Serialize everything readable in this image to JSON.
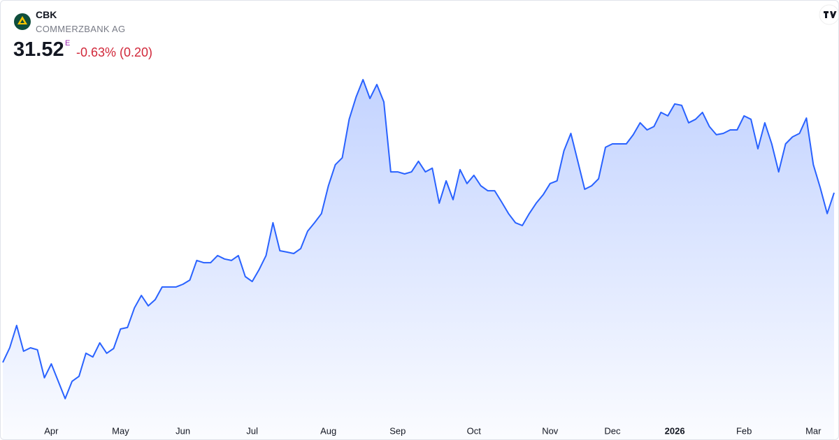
{
  "header": {
    "symbol": "CBK",
    "name": "COMMERZBANK AG",
    "price": "31.52",
    "badge": "E",
    "change": "-0.63% (0.20)"
  },
  "chart_data": {
    "type": "line",
    "categories": [
      null,
      null,
      null,
      null,
      null,
      null,
      null,
      "Apr",
      null,
      null,
      null,
      null,
      null,
      null,
      null,
      null,
      null,
      "May",
      null,
      null,
      null,
      null,
      null,
      null,
      null,
      null,
      "Jun",
      null,
      null,
      null,
      null,
      null,
      null,
      null,
      null,
      null,
      "Jul",
      null,
      null,
      null,
      null,
      null,
      null,
      null,
      null,
      null,
      null,
      "Aug",
      null,
      null,
      null,
      null,
      null,
      null,
      null,
      null,
      null,
      "Sep",
      null,
      null,
      null,
      null,
      null,
      null,
      null,
      null,
      null,
      null,
      "Oct",
      null,
      null,
      null,
      null,
      null,
      null,
      null,
      null,
      null,
      null,
      "Nov",
      null,
      null,
      null,
      null,
      null,
      null,
      null,
      null,
      "Dec",
      null,
      null,
      null,
      null,
      null,
      null,
      null,
      null,
      "2026",
      null,
      null,
      null,
      null,
      null,
      null,
      null,
      null,
      null,
      "Feb",
      null,
      null,
      null,
      null,
      null,
      null,
      null,
      null,
      null,
      "Mar",
      null,
      null,
      null
    ],
    "series": [
      {
        "color": "#2962ff",
        "values": [
          22.25,
          23.05,
          24.27,
          22.86,
          23.05,
          22.94,
          21.41,
          22.17,
          21.22,
          20.27,
          21.22,
          21.49,
          22.75,
          22.55,
          23.32,
          22.75,
          23.01,
          24.08,
          24.16,
          25.23,
          25.91,
          25.34,
          25.68,
          26.37,
          26.37,
          26.37,
          26.52,
          26.75,
          27.82,
          27.7,
          27.7,
          28.09,
          27.9,
          27.82,
          28.09,
          26.94,
          26.67,
          27.32,
          28.09,
          29.88,
          28.35,
          28.28,
          28.2,
          28.47,
          29.42,
          29.88,
          30.38,
          31.9,
          33.05,
          33.43,
          35.53,
          36.75,
          37.7,
          36.67,
          37.43,
          36.48,
          32.66,
          32.66,
          32.55,
          32.66,
          33.24,
          32.66,
          32.86,
          30.95,
          32.17,
          31.14,
          32.78,
          32.02,
          32.47,
          31.9,
          31.63,
          31.63,
          31.02,
          30.38,
          29.88,
          29.73,
          30.38,
          30.95,
          31.41,
          32.02,
          32.17,
          33.81,
          34.76,
          33.24,
          31.71,
          31.9,
          32.28,
          34.0,
          34.19,
          34.19,
          34.19,
          34.69,
          35.34,
          34.95,
          35.14,
          35.91,
          35.72,
          36.37,
          36.29,
          35.34,
          35.53,
          35.91,
          35.14,
          34.69,
          34.76,
          34.95,
          34.95,
          35.72,
          35.53,
          33.92,
          35.34,
          34.19,
          32.66,
          34.19,
          34.57,
          34.76,
          35.6,
          33.05,
          31.79,
          30.38,
          31.52
        ]
      }
    ],
    "ylim": [
      19.5,
      38.5
    ]
  }
}
